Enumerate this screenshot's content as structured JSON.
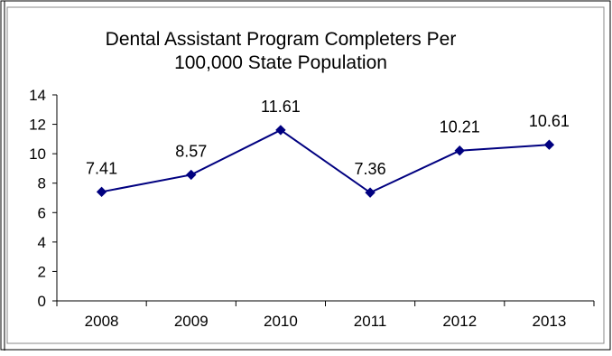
{
  "chart_data": {
    "type": "line",
    "title_lines": [
      "Dental Assistant Program Completers Per",
      "100,000 State Population"
    ],
    "xlabel": "",
    "ylabel": "",
    "categories": [
      "2008",
      "2009",
      "2010",
      "2011",
      "2012",
      "2013"
    ],
    "series": [
      {
        "values": [
          7.41,
          8.57,
          11.61,
          7.36,
          10.21,
          10.61
        ],
        "labels": [
          "7.41",
          "8.57",
          "11.61",
          "7.36",
          "10.21",
          "10.61"
        ],
        "color": "#000080"
      }
    ],
    "ylim": [
      0,
      14
    ],
    "yticks": [
      "0",
      "2",
      "4",
      "6",
      "8",
      "10",
      "12",
      "14"
    ],
    "grid": false,
    "legend": "none",
    "border_color": "#000000",
    "axis_color": "#000000"
  }
}
